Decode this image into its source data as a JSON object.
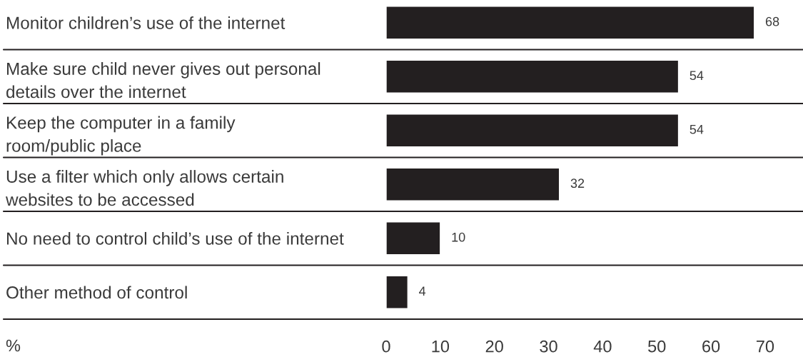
{
  "chart_data": {
    "type": "bar",
    "orientation": "horizontal",
    "categories": [
      "Monitor children’s use of the internet",
      "Make sure child never gives out personal\ndetails over the internet",
      "Keep the computer in a family\nroom/public place",
      "Use a filter which only allows certain\nwebsites to be accessed",
      "No need to control child’s use of the internet",
      "Other method of control"
    ],
    "values": [
      68,
      54,
      54,
      32,
      10,
      4
    ],
    "color": "#231f20",
    "xlabel": "%",
    "xlim": [
      0,
      77
    ],
    "xticks": [
      0,
      10,
      20,
      30,
      40,
      50,
      60,
      70
    ],
    "grid": "y",
    "data_labels": true
  }
}
